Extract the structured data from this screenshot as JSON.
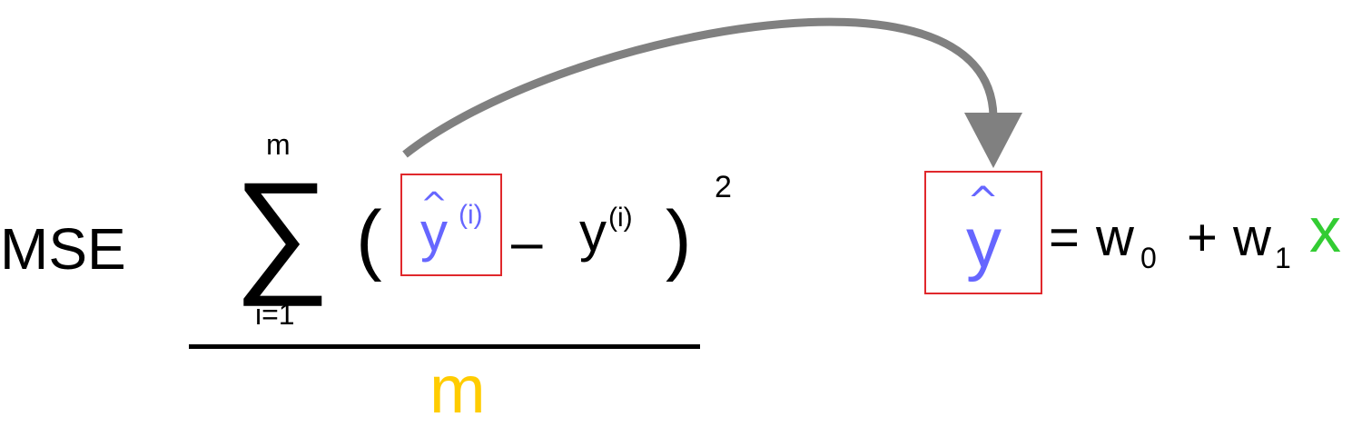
{
  "colors": {
    "text": "#000000",
    "prediction": "#6666ff",
    "input": "#33cc33",
    "denominator": "#ffcc00",
    "highlight_box": "#e0282c",
    "arrow": "#808080"
  },
  "loss_formula": {
    "name": "MSE",
    "sum_symbol": "∑",
    "sum_upper": "m",
    "sum_lower": "i=1",
    "open_paren": "(",
    "close_paren": ")",
    "exponent": "2",
    "predicted": {
      "hat": "^",
      "symbol": "y",
      "superscript": "(i)"
    },
    "operator": "–",
    "observed": {
      "symbol": "y",
      "superscript": "(i)"
    },
    "denominator": "m"
  },
  "model_formula": {
    "output": {
      "hat": "^",
      "symbol": "y"
    },
    "equals": "=",
    "weight0": {
      "symbol": "w",
      "subscript": "0"
    },
    "plus": "+",
    "weight1": {
      "symbol": "w",
      "subscript": "1"
    },
    "input": "x"
  }
}
